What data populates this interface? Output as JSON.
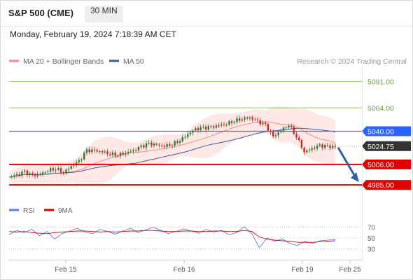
{
  "header": {
    "symbol": "S&P 500 (CME)",
    "timeframe": "30 MIN",
    "timestamp": "Monday, February 19, 2024 7:18:39 AM CET"
  },
  "legend": {
    "ma20_label": "MA 20 + Bollinger Bands",
    "ma50_label": "MA 50",
    "credit": "Research © 2024 Trading Central",
    "ma20_color": "#f28b82",
    "ma50_color": "#3c5a99"
  },
  "rsi_legend": {
    "rsi_label": "RSI",
    "ma_label": "9MA",
    "rsi_color": "#5a7fd6",
    "ma_color": "#e00000"
  },
  "colors": {
    "resistance_green": "#9ccc65",
    "support_red": "#e00000",
    "ma50_blue": "#4a72c9",
    "bollinger_fill": "#fde0dd",
    "up_candle": "#2e7d32",
    "down_candle": "#c62828",
    "arrow": "#2f5fa6",
    "price_box": "#333333"
  },
  "chart_data": {
    "type": "candlestick",
    "y_axis_side": "right",
    "ylim": [
      4970,
      5105
    ],
    "x_ticks": [
      "Feb 15",
      "Feb 16",
      "Feb 19",
      "Feb 25"
    ],
    "levels": [
      {
        "label": "5091.00",
        "value": 5091.0,
        "kind": "resistance"
      },
      {
        "label": "5064.00",
        "value": 5064.0,
        "kind": "resistance"
      },
      {
        "label": "5040.00",
        "value": 5040.0,
        "kind": "pivot"
      },
      {
        "label": "5006.00",
        "value": 5006.0,
        "kind": "support"
      },
      {
        "label": "4985.00",
        "value": 4985.0,
        "kind": "support"
      }
    ],
    "last_price": {
      "label": "5024.75",
      "value": 5024.75
    },
    "anchors": [
      4993,
      4995,
      4998,
      4994,
      4996,
      5000,
      5002,
      4998,
      5004,
      5009,
      5020,
      5020,
      5019,
      5017,
      5016,
      5018,
      5020,
      5024,
      5027,
      5026,
      5025,
      5027,
      5031,
      5037,
      5042,
      5043,
      5044,
      5046,
      5048,
      5051,
      5053,
      5054,
      5050,
      5046,
      5034,
      5041,
      5047,
      5035,
      5019,
      5022,
      5025,
      5024,
      5024
    ],
    "forecast": {
      "from": 5024.75,
      "to": 4985.0
    },
    "rsi": {
      "ticks": [
        "70",
        "50",
        "30"
      ],
      "ylim": [
        15,
        85
      ],
      "rsi_values": [
        56,
        64,
        60,
        66,
        54,
        62,
        48,
        58,
        63,
        68,
        61,
        58,
        66,
        62,
        57,
        63,
        68,
        60,
        65,
        70,
        64,
        58,
        62,
        67,
        63,
        59,
        66,
        61,
        64,
        56,
        60,
        71,
        58,
        32,
        50,
        44,
        48,
        40,
        36,
        44,
        40,
        45,
        46,
        47
      ],
      "ma_values": [
        62,
        61,
        62,
        60,
        59,
        58,
        60,
        61,
        62,
        63,
        63,
        62,
        61,
        62,
        61,
        62,
        63,
        63,
        64,
        64,
        63,
        62,
        62,
        63,
        63,
        62,
        62,
        63,
        63,
        62,
        62,
        64,
        62,
        52,
        48,
        46,
        45,
        44,
        42,
        42,
        42,
        43,
        44,
        45
      ]
    }
  }
}
